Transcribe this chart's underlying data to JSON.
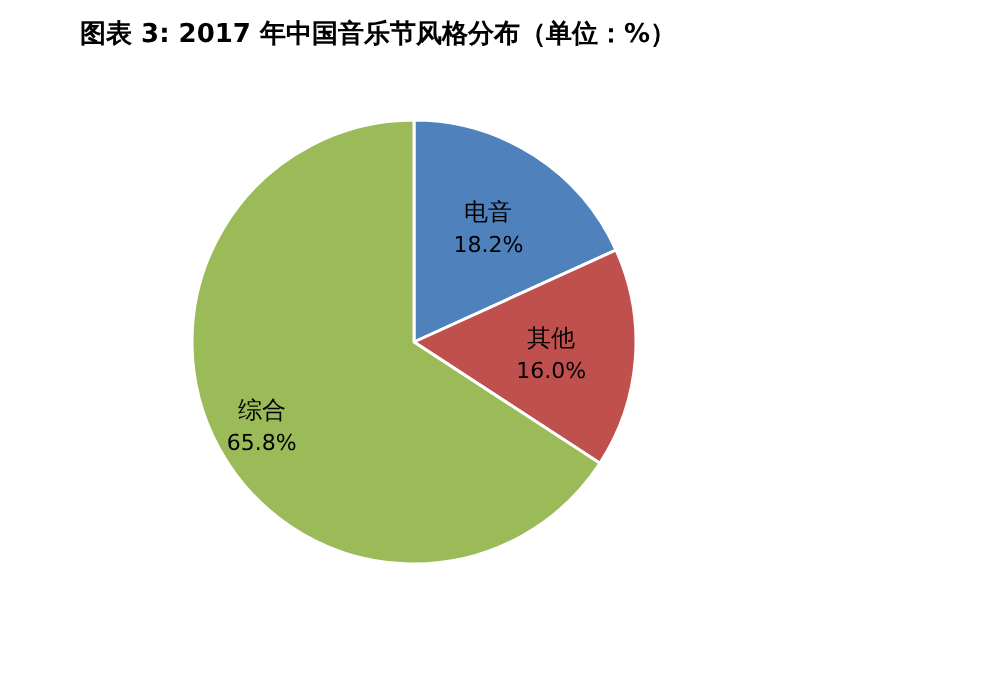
{
  "chart_data": {
    "type": "pie",
    "title": "图表 3: 2017 年中国音乐节风格分布（单位：%）",
    "categories": [
      "电音",
      "其他",
      "综合"
    ],
    "values": [
      18.2,
      16.0,
      65.8
    ],
    "value_labels": [
      "18.2%",
      "16.0%",
      "65.8%"
    ],
    "colors": [
      "#4f81bd",
      "#c0504d",
      "#9bbb59"
    ]
  }
}
